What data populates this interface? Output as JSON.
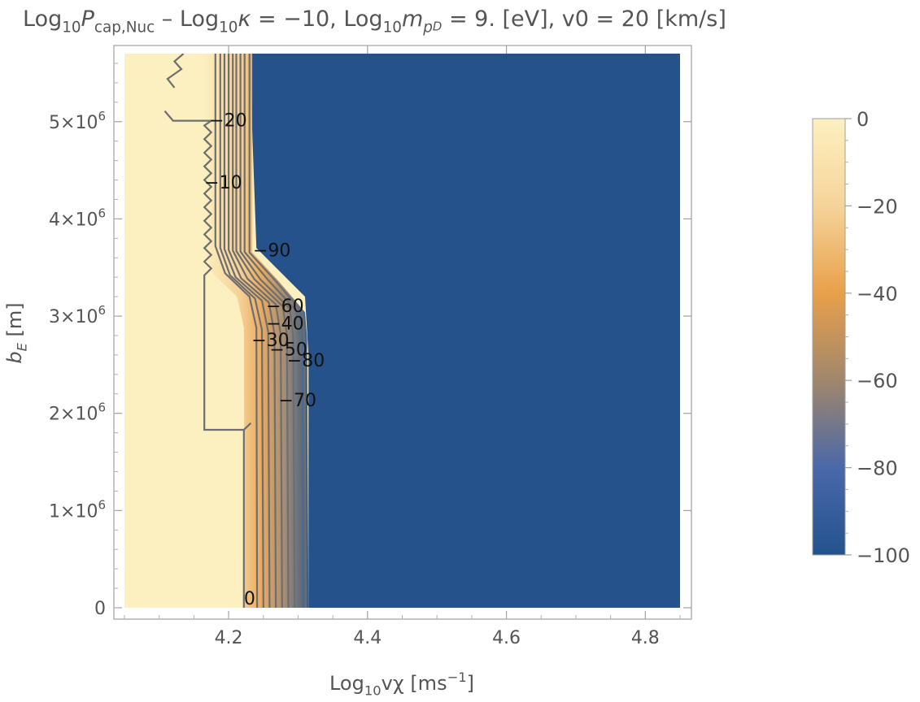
{
  "chart_data": {
    "type": "heatmap",
    "subtype": "contour-density",
    "title": {
      "parts": [
        {
          "t": "Log"
        },
        {
          "t": "10",
          "sub": true
        },
        {
          "t": "P",
          "italic": true
        },
        {
          "t": "cap,Nuc",
          "sub": true
        },
        {
          "t": " – Log"
        },
        {
          "t": "10",
          "sub": true
        },
        {
          "t": "κ",
          "italic": true
        },
        {
          "t": " = −10, Log"
        },
        {
          "t": "10",
          "sub": true
        },
        {
          "t": "m",
          "italic": true
        },
        {
          "t": "p",
          "sub": true,
          "italic": true
        },
        {
          "t": "D",
          "sub2": true,
          "italic": true
        },
        {
          "t": " = 9. [eV], v0 = 20 [km/s]"
        }
      ]
    },
    "xlabel": {
      "parts": [
        {
          "t": "Log"
        },
        {
          "t": "10",
          "sub": true
        },
        {
          "t": "vχ [ms"
        },
        {
          "t": "−1",
          "sup": true
        },
        {
          "t": "]"
        }
      ]
    },
    "ylabel": {
      "parts": [
        {
          "t": "b",
          "italic": true
        },
        {
          "t": "E",
          "sub": true,
          "italic": true
        },
        {
          "t": " [m]"
        }
      ]
    },
    "xlim": [
      4.05,
      4.85
    ],
    "ylim": [
      0,
      5700000
    ],
    "xticks": [
      {
        "value": 4.2,
        "label": "4.2"
      },
      {
        "value": 4.4,
        "label": "4.4"
      },
      {
        "value": 4.6,
        "label": "4.6"
      },
      {
        "value": 4.8,
        "label": "4.8"
      }
    ],
    "yticks": [
      {
        "value": 0,
        "label": "0"
      },
      {
        "value": 1000000,
        "mantissa": "1",
        "exp": "6"
      },
      {
        "value": 2000000,
        "mantissa": "2",
        "exp": "6"
      },
      {
        "value": 3000000,
        "mantissa": "3",
        "exp": "6"
      },
      {
        "value": 4000000,
        "mantissa": "4",
        "exp": "6"
      },
      {
        "value": 5000000,
        "mantissa": "5",
        "exp": "6"
      }
    ],
    "value_range": [
      -100,
      0
    ],
    "colorbar": {
      "ticks": [
        {
          "value": 0,
          "label": "0"
        },
        {
          "value": -20,
          "label": "−20"
        },
        {
          "value": -40,
          "label": "−40"
        },
        {
          "value": -60,
          "label": "−60"
        },
        {
          "value": -80,
          "label": "−80"
        },
        {
          "value": -100,
          "label": "−100"
        }
      ],
      "stops": [
        {
          "value": 0,
          "color": "#fdf0c0"
        },
        {
          "value": -20,
          "color": "#f5d49a"
        },
        {
          "value": -40,
          "color": "#e8a04a"
        },
        {
          "value": -60,
          "color": "#a0876c"
        },
        {
          "value": -80,
          "color": "#4a68a8"
        },
        {
          "value": -100,
          "color": "#24538c"
        }
      ]
    },
    "colors": {
      "low_region": "#25528a",
      "high_region": "#fdf0c0",
      "contour_line": "#6e6e6e",
      "frame": "#a0a0a0",
      "background": "#ffffff"
    },
    "transition": {
      "description_free_params": true,
      "upper_edge_x": [
        [
          5700000,
          4.23
        ],
        [
          3700000,
          4.24
        ],
        [
          3200000,
          4.31
        ],
        [
          2600000,
          4.315
        ],
        [
          0,
          4.315
        ]
      ],
      "upper_start_x": 4.165
    },
    "contour_labels": [
      {
        "label": "0",
        "x": 4.222,
        "y": 100000
      },
      {
        "label": "−10",
        "x": 4.165,
        "y": 4380000
      },
      {
        "label": "−20",
        "x": 4.172,
        "y": 5020000
      },
      {
        "label": "−30",
        "x": 4.233,
        "y": 2760000
      },
      {
        "label": "−40",
        "x": 4.254,
        "y": 2930000
      },
      {
        "label": "−50",
        "x": 4.259,
        "y": 2660000
      },
      {
        "label": "−60",
        "x": 4.254,
        "y": 3110000
      },
      {
        "label": "−70",
        "x": 4.272,
        "y": 2140000
      },
      {
        "label": "−80",
        "x": 4.284,
        "y": 2550000
      },
      {
        "label": "−90",
        "x": 4.235,
        "y": 3680000
      }
    ],
    "contours": [
      {
        "value": 0,
        "points": [
          [
            4.222,
            0
          ],
          [
            4.222,
            1830000
          ],
          [
            4.232,
            1900000
          ]
        ]
      },
      {
        "value": -5,
        "points": [
          [
            4.222,
            1830000
          ],
          [
            4.165,
            1830000
          ],
          [
            4.165,
            3420000
          ],
          [
            4.175,
            3490000
          ],
          [
            4.165,
            3560000
          ],
          [
            4.175,
            3630000
          ],
          [
            4.165,
            3700000
          ],
          [
            4.175,
            3770000
          ],
          [
            4.165,
            3840000
          ],
          [
            4.175,
            3910000
          ],
          [
            4.165,
            3980000
          ],
          [
            4.175,
            4050000
          ],
          [
            4.165,
            4120000
          ],
          [
            4.175,
            4190000
          ],
          [
            4.165,
            4260000
          ],
          [
            4.175,
            4330000
          ],
          [
            4.165,
            4400000
          ],
          [
            4.175,
            4470000
          ],
          [
            4.165,
            4540000
          ],
          [
            4.175,
            4610000
          ],
          [
            4.165,
            4680000
          ],
          [
            4.175,
            4750000
          ],
          [
            4.165,
            4820000
          ],
          [
            4.175,
            4890000
          ],
          [
            4.165,
            4960000
          ],
          [
            4.175,
            5010000
          ],
          [
            4.12,
            5010000
          ],
          [
            4.108,
            5110000
          ]
        ]
      },
      {
        "value": -7,
        "points": [
          [
            4.135,
            5700000
          ],
          [
            4.122,
            5620000
          ],
          [
            4.132,
            5540000
          ],
          [
            4.112,
            5440000
          ],
          [
            4.122,
            5350000
          ]
        ]
      },
      {
        "value": -10,
        "points": [
          [
            4.181,
            5700000
          ],
          [
            4.181,
            3720000
          ],
          [
            4.195,
            3440000
          ],
          [
            4.23,
            3200000
          ],
          [
            4.24,
            2880000
          ],
          [
            4.241,
            0
          ]
        ]
      },
      {
        "value": -20,
        "points": [
          [
            4.188,
            5700000
          ],
          [
            4.188,
            3700000
          ],
          [
            4.202,
            3420000
          ],
          [
            4.238,
            3180000
          ],
          [
            4.248,
            2860000
          ],
          [
            4.25,
            0
          ]
        ]
      },
      {
        "value": -30,
        "points": [
          [
            4.194,
            5700000
          ],
          [
            4.194,
            3690000
          ],
          [
            4.21,
            3400000
          ],
          [
            4.248,
            3160000
          ],
          [
            4.257,
            2840000
          ],
          [
            4.259,
            0
          ]
        ]
      },
      {
        "value": -40,
        "points": [
          [
            4.2,
            5700000
          ],
          [
            4.2,
            3680000
          ],
          [
            4.218,
            3390000
          ],
          [
            4.258,
            3140000
          ],
          [
            4.266,
            2820000
          ],
          [
            4.268,
            0
          ]
        ]
      },
      {
        "value": -50,
        "points": [
          [
            4.206,
            5700000
          ],
          [
            4.206,
            3675000
          ],
          [
            4.227,
            3385000
          ],
          [
            4.268,
            3120000
          ],
          [
            4.275,
            2810000
          ],
          [
            4.277,
            0
          ]
        ]
      },
      {
        "value": -60,
        "points": [
          [
            4.211,
            5700000
          ],
          [
            4.211,
            3670000
          ],
          [
            4.237,
            3380000
          ],
          [
            4.278,
            3100000
          ],
          [
            4.284,
            2800000
          ],
          [
            4.286,
            0
          ]
        ]
      },
      {
        "value": -70,
        "points": [
          [
            4.217,
            5700000
          ],
          [
            4.217,
            3665000
          ],
          [
            4.246,
            3375000
          ],
          [
            4.288,
            3080000
          ],
          [
            4.293,
            2790000
          ],
          [
            4.295,
            0
          ]
        ]
      },
      {
        "value": -80,
        "points": [
          [
            4.223,
            5700000
          ],
          [
            4.223,
            3660000
          ],
          [
            4.257,
            3370000
          ],
          [
            4.297,
            3060000
          ],
          [
            4.301,
            2780000
          ],
          [
            4.303,
            0
          ]
        ]
      },
      {
        "value": -90,
        "points": [
          [
            4.23,
            5700000
          ],
          [
            4.23,
            3655000
          ],
          [
            4.268,
            3360000
          ],
          [
            4.306,
            3040000
          ],
          [
            4.309,
            2770000
          ],
          [
            4.311,
            0
          ]
        ]
      }
    ]
  }
}
